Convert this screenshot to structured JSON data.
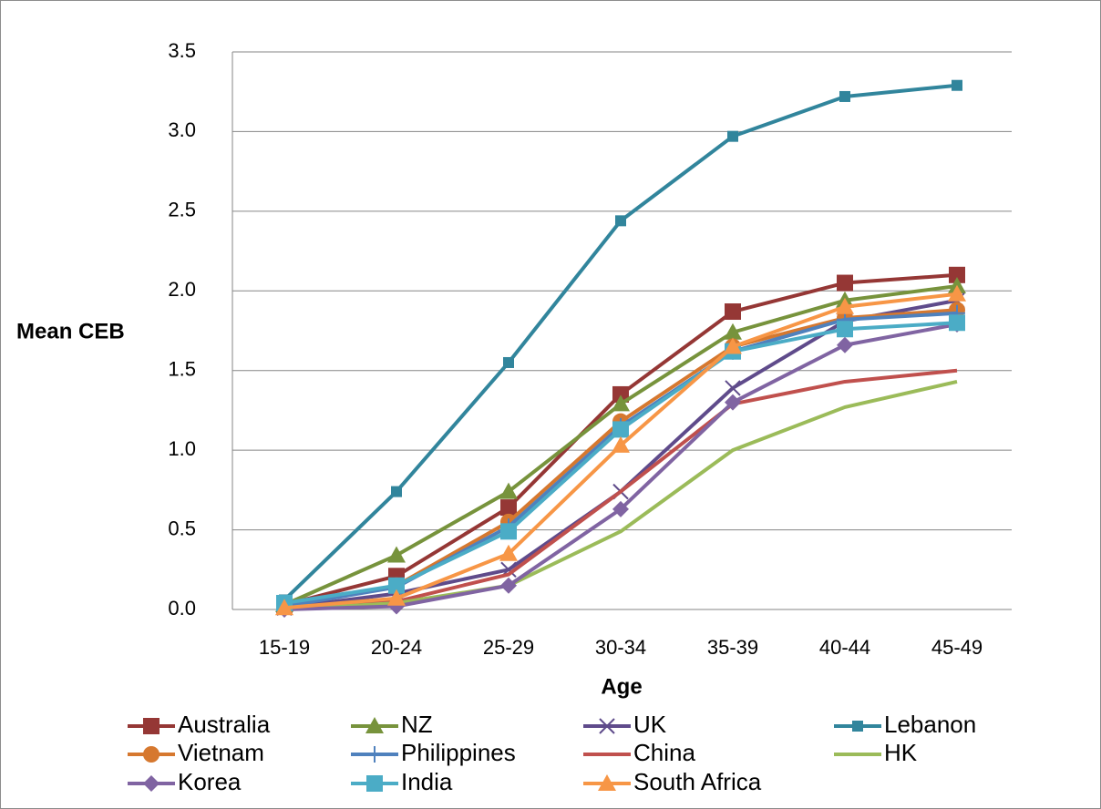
{
  "chart_data": {
    "type": "line",
    "x_label": "Age",
    "y_label": "Mean CEB",
    "categories": [
      "15-19",
      "20-24",
      "25-29",
      "30-34",
      "35-39",
      "40-44",
      "45-49"
    ],
    "ylim": [
      0,
      3.5
    ],
    "yticks": [
      {
        "value": 0,
        "label": "0.0"
      },
      0.5,
      {
        "value": 1,
        "label": "1.0"
      },
      1.5,
      {
        "value": 2,
        "label": "2.0"
      },
      2.5,
      {
        "value": 3,
        "label": "3.0"
      },
      3.5
    ],
    "grid": true,
    "series": [
      {
        "name": "Australia",
        "color": "#953735",
        "marker": "square",
        "values": [
          0.03,
          0.21,
          0.64,
          1.35,
          1.87,
          2.05,
          2.1
        ]
      },
      {
        "name": "NZ",
        "color": "#77933c",
        "marker": "triangle",
        "values": [
          0.03,
          0.34,
          0.74,
          1.29,
          1.74,
          1.94,
          2.03
        ]
      },
      {
        "name": "UK",
        "color": "#5f4b8b",
        "marker": "x",
        "values": [
          0.01,
          0.1,
          0.25,
          0.74,
          1.39,
          1.81,
          1.94
        ]
      },
      {
        "name": "Lebanon",
        "color": "#31859c",
        "marker": "small-square",
        "values": [
          0.06,
          0.74,
          1.55,
          2.44,
          2.97,
          3.22,
          3.29
        ]
      },
      {
        "name": "Vietnam",
        "color": "#d6782f",
        "marker": "circle",
        "values": [
          0.02,
          0.15,
          0.55,
          1.18,
          1.65,
          1.83,
          1.88
        ]
      },
      {
        "name": "Philippines",
        "color": "#4f81bd",
        "marker": "plus",
        "values": [
          0.02,
          0.14,
          0.52,
          1.15,
          1.62,
          1.82,
          1.86
        ]
      },
      {
        "name": "China",
        "color": "#c0504d",
        "marker": "none",
        "values": [
          0.01,
          0.05,
          0.22,
          0.74,
          1.29,
          1.43,
          1.5
        ]
      },
      {
        "name": "HK",
        "color": "#9bbb59",
        "marker": "none",
        "values": [
          0.0,
          0.04,
          0.15,
          0.49,
          1.0,
          1.27,
          1.43
        ]
      },
      {
        "name": "Korea",
        "color": "#8064a2",
        "marker": "diamond",
        "values": [
          0.0,
          0.02,
          0.15,
          0.63,
          1.3,
          1.66,
          1.79
        ]
      },
      {
        "name": "India",
        "color": "#4bacc6",
        "marker": "square",
        "values": [
          0.04,
          0.15,
          0.49,
          1.13,
          1.62,
          1.76,
          1.8
        ]
      },
      {
        "name": "South Africa",
        "color": "#f79646",
        "marker": "triangle",
        "values": [
          0.01,
          0.07,
          0.35,
          1.03,
          1.65,
          1.9,
          1.98
        ]
      }
    ]
  }
}
